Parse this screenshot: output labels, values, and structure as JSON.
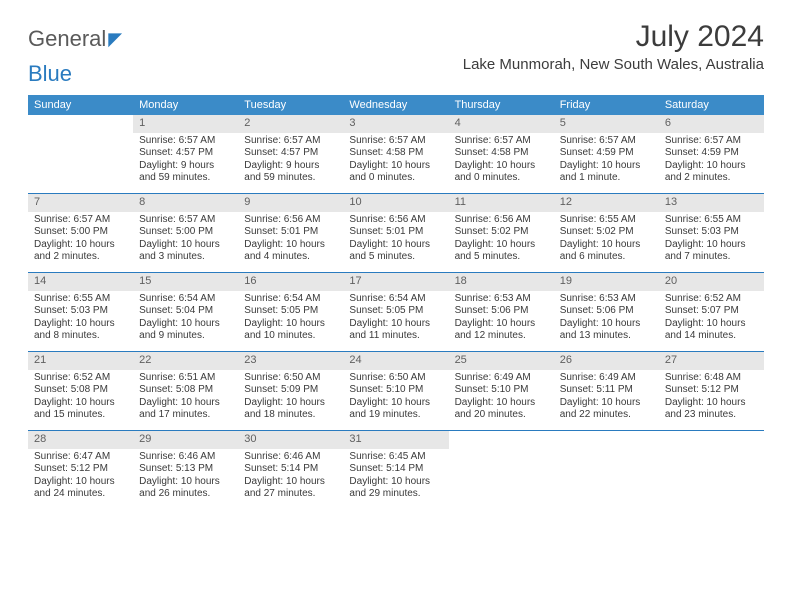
{
  "logo": {
    "text1": "General",
    "text2": "Blue"
  },
  "title": "July 2024",
  "location": "Lake Munmorah, New South Wales, Australia",
  "colors": {
    "header_bg": "#3b8bc8",
    "header_text": "#ffffff",
    "rule": "#2a7bbf",
    "daynum_bg": "#e7e7e7",
    "daynum_text": "#606060",
    "body_text": "#3a3a3a",
    "title_text": "#3c3c3c",
    "logo_gray": "#5a5a5a",
    "logo_blue": "#2a7bbf",
    "page_bg": "#ffffff"
  },
  "weekdays": [
    "Sunday",
    "Monday",
    "Tuesday",
    "Wednesday",
    "Thursday",
    "Friday",
    "Saturday"
  ],
  "weeks": [
    [
      {
        "empty": true
      },
      {
        "num": "1",
        "sunrise": "Sunrise: 6:57 AM",
        "sunset": "Sunset: 4:57 PM",
        "daylight": "Daylight: 9 hours and 59 minutes."
      },
      {
        "num": "2",
        "sunrise": "Sunrise: 6:57 AM",
        "sunset": "Sunset: 4:57 PM",
        "daylight": "Daylight: 9 hours and 59 minutes."
      },
      {
        "num": "3",
        "sunrise": "Sunrise: 6:57 AM",
        "sunset": "Sunset: 4:58 PM",
        "daylight": "Daylight: 10 hours and 0 minutes."
      },
      {
        "num": "4",
        "sunrise": "Sunrise: 6:57 AM",
        "sunset": "Sunset: 4:58 PM",
        "daylight": "Daylight: 10 hours and 0 minutes."
      },
      {
        "num": "5",
        "sunrise": "Sunrise: 6:57 AM",
        "sunset": "Sunset: 4:59 PM",
        "daylight": "Daylight: 10 hours and 1 minute."
      },
      {
        "num": "6",
        "sunrise": "Sunrise: 6:57 AM",
        "sunset": "Sunset: 4:59 PM",
        "daylight": "Daylight: 10 hours and 2 minutes."
      }
    ],
    [
      {
        "num": "7",
        "sunrise": "Sunrise: 6:57 AM",
        "sunset": "Sunset: 5:00 PM",
        "daylight": "Daylight: 10 hours and 2 minutes."
      },
      {
        "num": "8",
        "sunrise": "Sunrise: 6:57 AM",
        "sunset": "Sunset: 5:00 PM",
        "daylight": "Daylight: 10 hours and 3 minutes."
      },
      {
        "num": "9",
        "sunrise": "Sunrise: 6:56 AM",
        "sunset": "Sunset: 5:01 PM",
        "daylight": "Daylight: 10 hours and 4 minutes."
      },
      {
        "num": "10",
        "sunrise": "Sunrise: 6:56 AM",
        "sunset": "Sunset: 5:01 PM",
        "daylight": "Daylight: 10 hours and 5 minutes."
      },
      {
        "num": "11",
        "sunrise": "Sunrise: 6:56 AM",
        "sunset": "Sunset: 5:02 PM",
        "daylight": "Daylight: 10 hours and 5 minutes."
      },
      {
        "num": "12",
        "sunrise": "Sunrise: 6:55 AM",
        "sunset": "Sunset: 5:02 PM",
        "daylight": "Daylight: 10 hours and 6 minutes."
      },
      {
        "num": "13",
        "sunrise": "Sunrise: 6:55 AM",
        "sunset": "Sunset: 5:03 PM",
        "daylight": "Daylight: 10 hours and 7 minutes."
      }
    ],
    [
      {
        "num": "14",
        "sunrise": "Sunrise: 6:55 AM",
        "sunset": "Sunset: 5:03 PM",
        "daylight": "Daylight: 10 hours and 8 minutes."
      },
      {
        "num": "15",
        "sunrise": "Sunrise: 6:54 AM",
        "sunset": "Sunset: 5:04 PM",
        "daylight": "Daylight: 10 hours and 9 minutes."
      },
      {
        "num": "16",
        "sunrise": "Sunrise: 6:54 AM",
        "sunset": "Sunset: 5:05 PM",
        "daylight": "Daylight: 10 hours and 10 minutes."
      },
      {
        "num": "17",
        "sunrise": "Sunrise: 6:54 AM",
        "sunset": "Sunset: 5:05 PM",
        "daylight": "Daylight: 10 hours and 11 minutes."
      },
      {
        "num": "18",
        "sunrise": "Sunrise: 6:53 AM",
        "sunset": "Sunset: 5:06 PM",
        "daylight": "Daylight: 10 hours and 12 minutes."
      },
      {
        "num": "19",
        "sunrise": "Sunrise: 6:53 AM",
        "sunset": "Sunset: 5:06 PM",
        "daylight": "Daylight: 10 hours and 13 minutes."
      },
      {
        "num": "20",
        "sunrise": "Sunrise: 6:52 AM",
        "sunset": "Sunset: 5:07 PM",
        "daylight": "Daylight: 10 hours and 14 minutes."
      }
    ],
    [
      {
        "num": "21",
        "sunrise": "Sunrise: 6:52 AM",
        "sunset": "Sunset: 5:08 PM",
        "daylight": "Daylight: 10 hours and 15 minutes."
      },
      {
        "num": "22",
        "sunrise": "Sunrise: 6:51 AM",
        "sunset": "Sunset: 5:08 PM",
        "daylight": "Daylight: 10 hours and 17 minutes."
      },
      {
        "num": "23",
        "sunrise": "Sunrise: 6:50 AM",
        "sunset": "Sunset: 5:09 PM",
        "daylight": "Daylight: 10 hours and 18 minutes."
      },
      {
        "num": "24",
        "sunrise": "Sunrise: 6:50 AM",
        "sunset": "Sunset: 5:10 PM",
        "daylight": "Daylight: 10 hours and 19 minutes."
      },
      {
        "num": "25",
        "sunrise": "Sunrise: 6:49 AM",
        "sunset": "Sunset: 5:10 PM",
        "daylight": "Daylight: 10 hours and 20 minutes."
      },
      {
        "num": "26",
        "sunrise": "Sunrise: 6:49 AM",
        "sunset": "Sunset: 5:11 PM",
        "daylight": "Daylight: 10 hours and 22 minutes."
      },
      {
        "num": "27",
        "sunrise": "Sunrise: 6:48 AM",
        "sunset": "Sunset: 5:12 PM",
        "daylight": "Daylight: 10 hours and 23 minutes."
      }
    ],
    [
      {
        "num": "28",
        "sunrise": "Sunrise: 6:47 AM",
        "sunset": "Sunset: 5:12 PM",
        "daylight": "Daylight: 10 hours and 24 minutes."
      },
      {
        "num": "29",
        "sunrise": "Sunrise: 6:46 AM",
        "sunset": "Sunset: 5:13 PM",
        "daylight": "Daylight: 10 hours and 26 minutes."
      },
      {
        "num": "30",
        "sunrise": "Sunrise: 6:46 AM",
        "sunset": "Sunset: 5:14 PM",
        "daylight": "Daylight: 10 hours and 27 minutes."
      },
      {
        "num": "31",
        "sunrise": "Sunrise: 6:45 AM",
        "sunset": "Sunset: 5:14 PM",
        "daylight": "Daylight: 10 hours and 29 minutes."
      },
      {
        "empty": true
      },
      {
        "empty": true
      },
      {
        "empty": true
      }
    ]
  ]
}
